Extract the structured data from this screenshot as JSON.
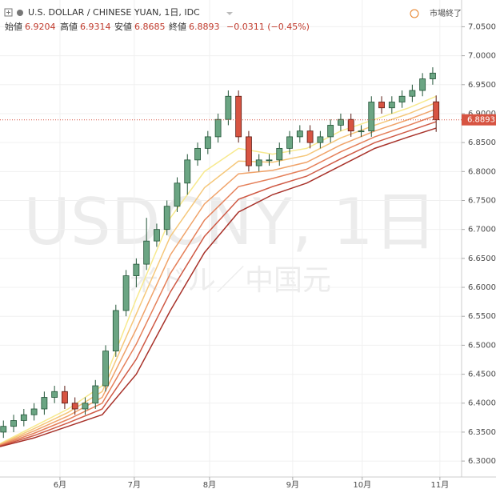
{
  "header": {
    "symbol": "U.S. DOLLAR / CHINESE YUAN, 1日, IDC",
    "open_label": "始値",
    "high_label": "高値",
    "low_label": "安値",
    "close_label": "終値",
    "change": "−0.0311 (−0.45%)",
    "status": "市場終了"
  },
  "watermark": {
    "line1": "USDCNY, 1日",
    "line2": "米ドル／中国元"
  },
  "chart_data": {
    "type": "candlestick",
    "x": [
      1,
      4,
      7,
      10,
      13,
      16,
      19,
      22,
      25,
      28,
      31,
      34,
      37,
      40,
      43,
      46,
      49,
      52,
      55,
      58,
      61,
      64,
      67,
      70,
      73,
      76,
      79,
      82,
      85,
      88,
      91,
      94,
      97,
      100,
      103,
      106,
      109,
      112,
      115,
      118,
      121,
      124,
      127,
      128
    ],
    "open": [
      6.35,
      6.36,
      6.37,
      6.38,
      6.39,
      6.41,
      6.42,
      6.4,
      6.39,
      6.4,
      6.43,
      6.49,
      6.56,
      6.62,
      6.64,
      6.68,
      6.7,
      6.74,
      6.78,
      6.82,
      6.84,
      6.86,
      6.89,
      6.93,
      6.86,
      6.81,
      6.82,
      6.82,
      6.84,
      6.86,
      6.87,
      6.85,
      6.86,
      6.88,
      6.89,
      6.87,
      6.87,
      6.92,
      6.91,
      6.92,
      6.93,
      6.94,
      6.96,
      6.9204
    ],
    "high": [
      6.37,
      6.38,
      6.39,
      6.4,
      6.42,
      6.43,
      6.43,
      6.41,
      6.41,
      6.44,
      6.5,
      6.57,
      6.63,
      6.65,
      6.72,
      6.71,
      6.75,
      6.79,
      6.83,
      6.85,
      6.87,
      6.9,
      6.94,
      6.94,
      6.87,
      6.83,
      6.83,
      6.85,
      6.87,
      6.88,
      6.88,
      6.87,
      6.89,
      6.9,
      6.9,
      6.88,
      6.93,
      6.93,
      6.93,
      6.94,
      6.95,
      6.97,
      6.98,
      6.9314
    ],
    "low": [
      6.34,
      6.35,
      6.36,
      6.37,
      6.38,
      6.4,
      6.39,
      6.38,
      6.38,
      6.39,
      6.42,
      6.48,
      6.55,
      6.6,
      6.63,
      6.67,
      6.69,
      6.73,
      6.76,
      6.81,
      6.83,
      6.85,
      6.88,
      6.85,
      6.8,
      6.8,
      6.81,
      6.81,
      6.83,
      6.85,
      6.84,
      6.84,
      6.85,
      6.87,
      6.86,
      6.86,
      6.86,
      6.9,
      6.9,
      6.91,
      6.92,
      6.93,
      6.95,
      6.8685
    ],
    "close": [
      6.36,
      6.37,
      6.38,
      6.39,
      6.41,
      6.42,
      6.4,
      6.39,
      6.4,
      6.43,
      6.49,
      6.56,
      6.62,
      6.64,
      6.68,
      6.7,
      6.74,
      6.78,
      6.82,
      6.84,
      6.86,
      6.89,
      6.93,
      6.86,
      6.81,
      6.82,
      6.82,
      6.84,
      6.86,
      6.87,
      6.85,
      6.86,
      6.88,
      6.89,
      6.87,
      6.87,
      6.92,
      6.91,
      6.92,
      6.93,
      6.94,
      6.96,
      6.97,
      6.8893
    ],
    "up_color": "#6ba583",
    "down_color": "#d75442",
    "ribbon_x": [
      0,
      10,
      20,
      30,
      40,
      50,
      60,
      70,
      80,
      90,
      100,
      110,
      120,
      128
    ],
    "ribbon": [
      {
        "color": "#f7e98e",
        "values": [
          6.33,
          6.36,
          6.39,
          6.43,
          6.58,
          6.72,
          6.8,
          6.84,
          6.83,
          6.84,
          6.87,
          6.89,
          6.91,
          6.93
        ]
      },
      {
        "color": "#f5c77a",
        "values": [
          6.329,
          6.356,
          6.384,
          6.42,
          6.554,
          6.688,
          6.772,
          6.818,
          6.816,
          6.828,
          6.858,
          6.88,
          6.9,
          6.919
        ]
      },
      {
        "color": "#f0a36a",
        "values": [
          6.328,
          6.352,
          6.378,
          6.41,
          6.528,
          6.656,
          6.744,
          6.796,
          6.802,
          6.816,
          6.846,
          6.87,
          6.89,
          6.908
        ]
      },
      {
        "color": "#e5805a",
        "values": [
          6.327,
          6.348,
          6.372,
          6.4,
          6.502,
          6.624,
          6.716,
          6.774,
          6.788,
          6.804,
          6.834,
          6.86,
          6.88,
          6.897
        ]
      },
      {
        "color": "#cf5a45",
        "values": [
          6.326,
          6.344,
          6.366,
          6.39,
          6.476,
          6.592,
          6.688,
          6.752,
          6.774,
          6.792,
          6.822,
          6.85,
          6.87,
          6.886
        ]
      },
      {
        "color": "#a8322a",
        "values": [
          6.325,
          6.34,
          6.36,
          6.38,
          6.45,
          6.56,
          6.66,
          6.73,
          6.76,
          6.78,
          6.81,
          6.84,
          6.86,
          6.875
        ]
      }
    ],
    "xlim": [
      0,
      135
    ],
    "xticks": [
      {
        "value": 17.6,
        "label": "6月"
      },
      {
        "value": 39.4,
        "label": "7月"
      },
      {
        "value": 61.5,
        "label": "8月"
      },
      {
        "value": 85.9,
        "label": "9月"
      },
      {
        "value": 106.3,
        "label": "10月"
      },
      {
        "value": 129.1,
        "label": "11月"
      }
    ],
    "ylim": [
      6.2725,
      7.0962
    ],
    "yticks": [
      {
        "value": 6.3,
        "label": "6.3000"
      },
      {
        "value": 6.35,
        "label": "6.3500"
      },
      {
        "value": 6.4,
        "label": "6.4000"
      },
      {
        "value": 6.45,
        "label": "6.4500"
      },
      {
        "value": 6.5,
        "label": "6.5000"
      },
      {
        "value": 6.55,
        "label": "6.5500"
      },
      {
        "value": 6.6,
        "label": "6.6000"
      },
      {
        "value": 6.65,
        "label": "6.6500"
      },
      {
        "value": 6.7,
        "label": "6.7000"
      },
      {
        "value": 6.75,
        "label": "6.7500"
      },
      {
        "value": 6.8,
        "label": "6.8000"
      },
      {
        "value": 6.85,
        "label": "6.8500"
      },
      {
        "value": 6.9,
        "label": "6.9000"
      },
      {
        "value": 6.95,
        "label": "6.9500"
      },
      {
        "value": 7.0,
        "label": "7.0000"
      },
      {
        "value": 7.05,
        "label": "7.0500"
      }
    ],
    "price_line_color": "#d75442"
  }
}
